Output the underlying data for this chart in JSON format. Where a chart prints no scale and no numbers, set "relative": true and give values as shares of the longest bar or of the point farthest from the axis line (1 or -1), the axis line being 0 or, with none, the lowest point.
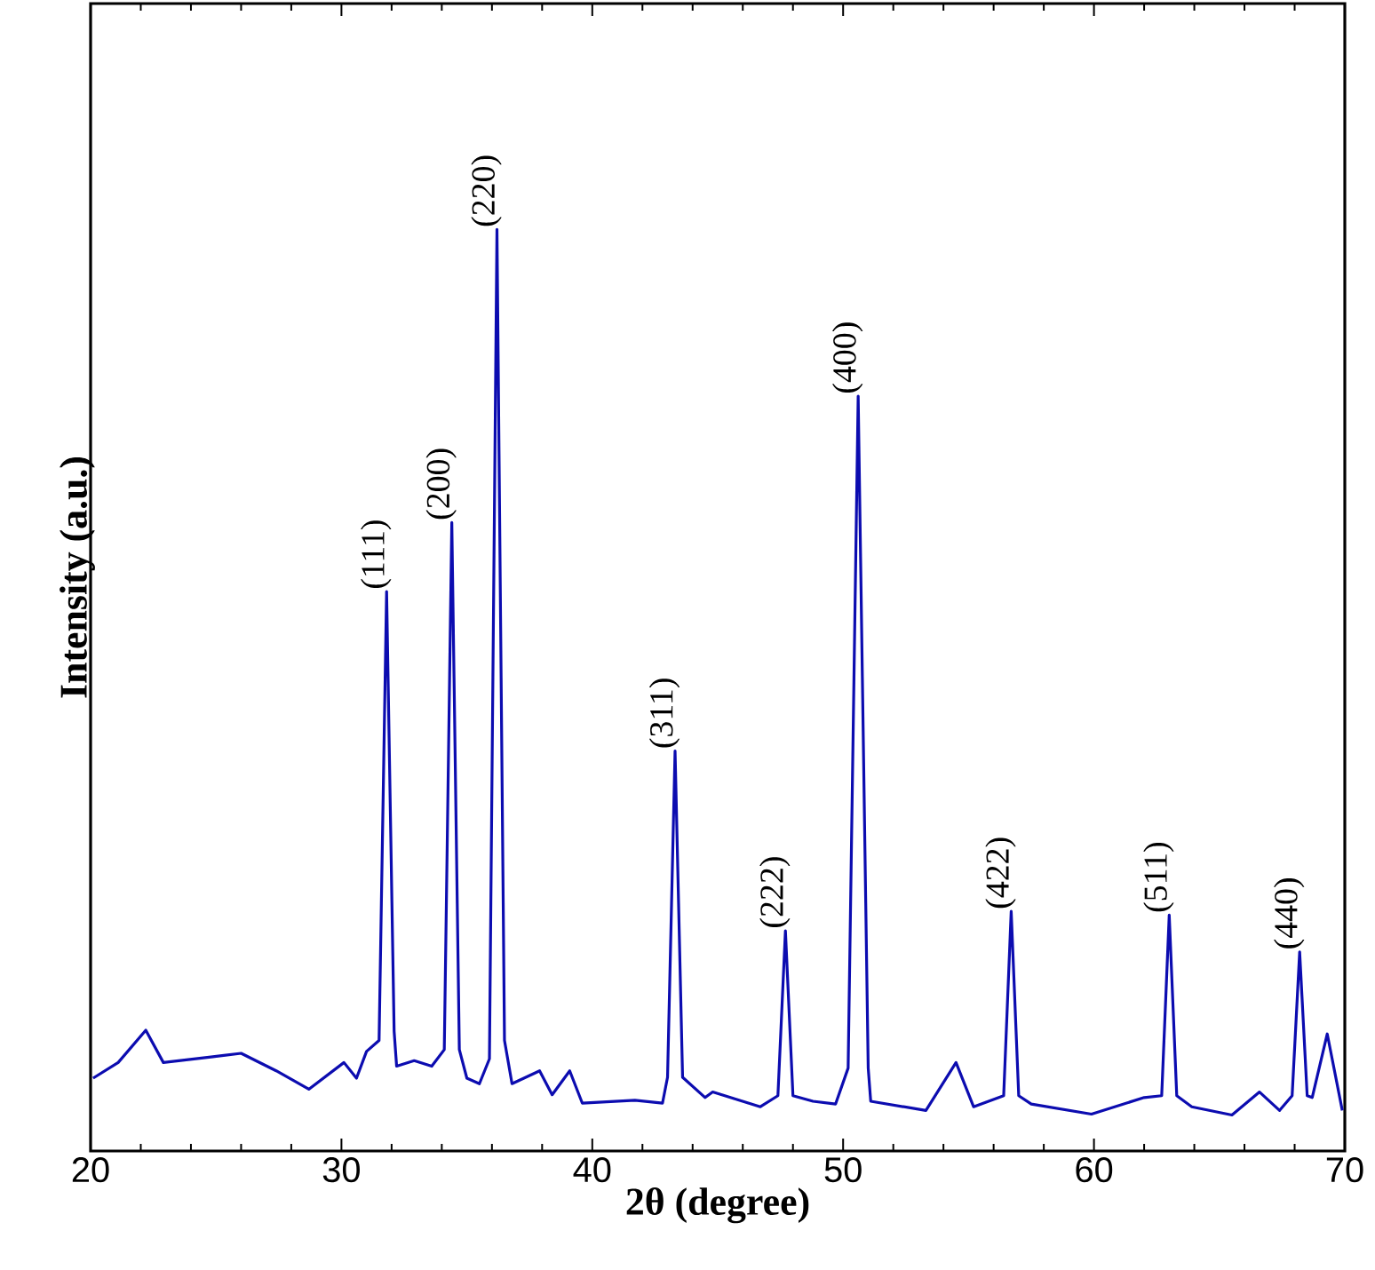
{
  "chart_data": {
    "type": "line",
    "relative": true,
    "xlabel": "2θ (degree)",
    "ylabel": "Intensity (a.u.)",
    "xlim": [
      20,
      70
    ],
    "xticks": [
      20,
      30,
      40,
      50,
      60,
      70
    ],
    "marker": "none",
    "line_style": "solid",
    "series": [
      {
        "color": "#0c0cb0",
        "x": [
          20.1,
          21.1,
          22.2,
          22.9,
          24.8,
          26.0,
          27.4,
          28.7,
          30.1,
          30.6,
          31.0,
          31.5,
          31.8,
          32.1,
          32.2,
          32.9,
          33.6,
          34.1,
          34.4,
          34.7,
          35.0,
          35.5,
          35.9,
          36.2,
          36.5,
          36.8,
          37.9,
          38.4,
          39.1,
          39.6,
          41.7,
          42.8,
          43.0,
          43.3,
          43.6,
          44.5,
          44.8,
          46.7,
          47.4,
          47.7,
          48.0,
          48.8,
          49.7,
          50.2,
          50.6,
          51.0,
          51.1,
          53.3,
          54.5,
          55.2,
          56.4,
          56.7,
          57.0,
          57.5,
          59.9,
          62.0,
          62.7,
          63.0,
          63.3,
          63.9,
          65.5,
          66.6,
          67.4,
          67.9,
          68.2,
          68.5,
          68.7,
          69.3,
          69.9
        ],
        "values": [
          0.079,
          0.096,
          0.131,
          0.096,
          0.102,
          0.106,
          0.087,
          0.067,
          0.096,
          0.079,
          0.108,
          0.12,
          0.607,
          0.13,
          0.092,
          0.098,
          0.092,
          0.11,
          0.682,
          0.11,
          0.079,
          0.073,
          0.1,
          1.0,
          0.12,
          0.073,
          0.087,
          0.061,
          0.087,
          0.052,
          0.055,
          0.052,
          0.08,
          0.434,
          0.08,
          0.058,
          0.064,
          0.048,
          0.06,
          0.239,
          0.06,
          0.054,
          0.051,
          0.09,
          0.819,
          0.09,
          0.054,
          0.044,
          0.096,
          0.048,
          0.06,
          0.26,
          0.06,
          0.051,
          0.04,
          0.058,
          0.06,
          0.256,
          0.06,
          0.048,
          0.039,
          0.064,
          0.044,
          0.06,
          0.216,
          0.06,
          0.058,
          0.127,
          0.044
        ]
      }
    ],
    "annotations": [
      {
        "text": "(111)",
        "x": 31.8,
        "y": 0.607
      },
      {
        "text": "(200)",
        "x": 34.4,
        "y": 0.682
      },
      {
        "text": "(220)",
        "x": 36.2,
        "y": 1.0
      },
      {
        "text": "(311)",
        "x": 43.3,
        "y": 0.434
      },
      {
        "text": "(222)",
        "x": 47.7,
        "y": 0.239
      },
      {
        "text": "(400)",
        "x": 50.6,
        "y": 0.819
      },
      {
        "text": "(422)",
        "x": 56.7,
        "y": 0.26
      },
      {
        "text": "(511)",
        "x": 63.0,
        "y": 0.256
      },
      {
        "text": "(440)",
        "x": 68.2,
        "y": 0.216
      }
    ]
  }
}
